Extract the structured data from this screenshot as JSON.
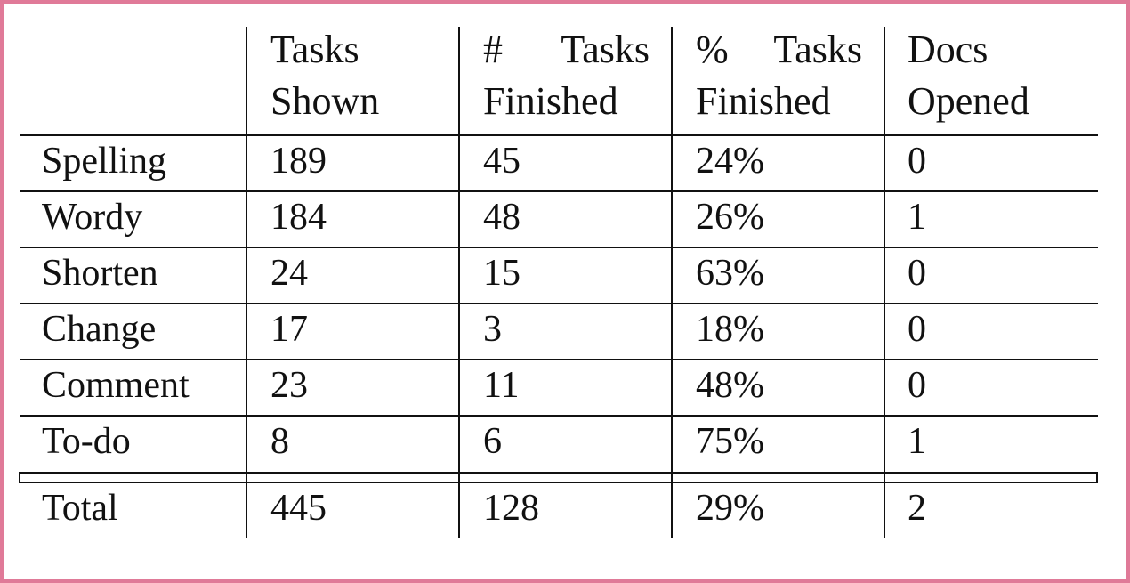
{
  "table": {
    "headers": [
      {
        "line1": [
          "Tasks"
        ],
        "line2": "Shown"
      },
      {
        "line1": [
          "#",
          "Tasks"
        ],
        "line2": "Finished"
      },
      {
        "line1": [
          "%",
          "Tasks"
        ],
        "line2": "Finished"
      },
      {
        "line1": [
          "Docs"
        ],
        "line2": "Opened"
      }
    ],
    "rows": [
      {
        "label": "Spelling",
        "shown": "189",
        "finished": "45",
        "pct": "24%",
        "docs": "0"
      },
      {
        "label": "Wordy",
        "shown": "184",
        "finished": "48",
        "pct": "26%",
        "docs": "1"
      },
      {
        "label": "Shorten",
        "shown": "24",
        "finished": "15",
        "pct": "63%",
        "docs": "0"
      },
      {
        "label": "Change",
        "shown": "17",
        "finished": "3",
        "pct": "18%",
        "docs": "0"
      },
      {
        "label": "Comment",
        "shown": "23",
        "finished": "11",
        "pct": "48%",
        "docs": "0"
      },
      {
        "label": "To-do",
        "shown": "8",
        "finished": "6",
        "pct": "75%",
        "docs": "1"
      }
    ],
    "total": {
      "label": "Total",
      "shown": "445",
      "finished": "128",
      "pct": "29%",
      "docs": "2"
    }
  }
}
